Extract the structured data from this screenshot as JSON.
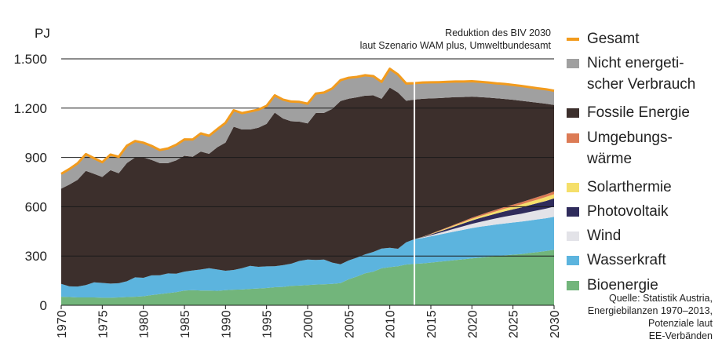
{
  "chart_data": {
    "type": "area",
    "stacked": true,
    "ylabel": "PJ",
    "ylim": [
      0,
      1500
    ],
    "yticks": [
      0,
      300,
      600,
      900,
      1200,
      1500
    ],
    "ytick_labels": [
      "0",
      "300",
      "600",
      "900",
      "1.200",
      "1.500"
    ],
    "xlim": [
      1970,
      2030
    ],
    "xticks": [
      1970,
      1975,
      1980,
      1985,
      1990,
      1995,
      2000,
      2005,
      2010,
      2015,
      2020,
      2025,
      2030
    ],
    "xtick_labels": [
      "1970",
      "1975",
      "1980",
      "1985",
      "1990",
      "1995",
      "2000",
      "2005",
      "2010",
      "2015",
      "2020",
      "2025",
      "2030"
    ],
    "grid": "horizontal",
    "divider_year": 2013,
    "note": "Reduktion des BIV 2030\nlaut Szenario WAM plus, Umweltbundesamt",
    "source": "Quelle: Statistik Austria,\nEnergiebilanzen 1970–2013,\nPotenziale laut\nEE-Verbänden",
    "x": [
      1970,
      1971,
      1972,
      1973,
      1974,
      1975,
      1976,
      1977,
      1978,
      1979,
      1980,
      1981,
      1982,
      1983,
      1984,
      1985,
      1986,
      1987,
      1988,
      1989,
      1990,
      1991,
      1992,
      1993,
      1994,
      1995,
      1996,
      1997,
      1998,
      1999,
      2000,
      2001,
      2002,
      2003,
      2004,
      2005,
      2006,
      2007,
      2008,
      2009,
      2010,
      2011,
      2012,
      2013,
      2014,
      2015,
      2016,
      2017,
      2018,
      2019,
      2020,
      2021,
      2022,
      2023,
      2024,
      2025,
      2026,
      2027,
      2028,
      2029,
      2030
    ],
    "series": [
      {
        "name": "Bioenergie",
        "color": "#72b57b",
        "values": [
          52,
          50,
          48,
          48,
          48,
          46,
          46,
          48,
          50,
          52,
          55,
          62,
          68,
          74,
          80,
          90,
          92,
          90,
          90,
          88,
          92,
          95,
          96,
          100,
          102,
          105,
          110,
          112,
          118,
          120,
          123,
          126,
          128,
          130,
          135,
          158,
          175,
          195,
          205,
          225,
          232,
          238,
          248,
          252,
          255,
          260,
          265,
          270,
          275,
          280,
          285,
          290,
          295,
          300,
          304,
          308,
          312,
          318,
          324,
          330,
          338
        ]
      },
      {
        "name": "Wasserkraft",
        "color": "#5cb4de",
        "values": [
          78,
          65,
          66,
          75,
          92,
          90,
          86,
          86,
          96,
          118,
          112,
          120,
          115,
          120,
          112,
          115,
          120,
          128,
          136,
          130,
          118,
          120,
          130,
          140,
          132,
          132,
          128,
          132,
          135,
          150,
          155,
          150,
          150,
          130,
          115,
          115,
          115,
          115,
          120,
          120,
          118,
          106,
          135,
          150,
          155,
          160,
          165,
          170,
          175,
          180,
          185,
          188,
          190,
          192,
          194,
          196,
          197,
          198,
          199,
          200,
          201
        ]
      },
      {
        "name": "Wind",
        "color": "#e3e3e8",
        "values": [
          0,
          0,
          0,
          0,
          0,
          0,
          0,
          0,
          0,
          0,
          0,
          0,
          0,
          0,
          0,
          0,
          0,
          0,
          0,
          0,
          0,
          0,
          0,
          0,
          0,
          0,
          0,
          0,
          0,
          0,
          0,
          0,
          0,
          0,
          0,
          0,
          0,
          0,
          0,
          0,
          0,
          0,
          0,
          0,
          3,
          6,
          10,
          14,
          18,
          22,
          26,
          30,
          34,
          38,
          42,
          45,
          48,
          52,
          55,
          58,
          62
        ]
      },
      {
        "name": "Photovoltaik",
        "color": "#2f2c5c",
        "values": [
          0,
          0,
          0,
          0,
          0,
          0,
          0,
          0,
          0,
          0,
          0,
          0,
          0,
          0,
          0,
          0,
          0,
          0,
          0,
          0,
          0,
          0,
          0,
          0,
          0,
          0,
          0,
          0,
          0,
          0,
          0,
          0,
          0,
          0,
          0,
          0,
          0,
          0,
          0,
          0,
          0,
          0,
          0,
          0,
          2,
          5,
          8,
          11,
          14,
          17,
          20,
          23,
          26,
          29,
          32,
          35,
          38,
          41,
          44,
          47,
          50
        ]
      },
      {
        "name": "Solarthermie",
        "color": "#f5df6a",
        "values": [
          0,
          0,
          0,
          0,
          0,
          0,
          0,
          0,
          0,
          0,
          0,
          0,
          0,
          0,
          0,
          0,
          0,
          0,
          0,
          0,
          0,
          0,
          0,
          0,
          0,
          0,
          0,
          0,
          0,
          0,
          0,
          0,
          0,
          0,
          0,
          0,
          0,
          0,
          0,
          0,
          0,
          0,
          0,
          0,
          1,
          2,
          4,
          5,
          7,
          8,
          10,
          11,
          13,
          14,
          16,
          17,
          19,
          20,
          22,
          24,
          25
        ]
      },
      {
        "name": "Umgebungswärme",
        "color": "#dc7b55",
        "values": [
          0,
          0,
          0,
          0,
          0,
          0,
          0,
          0,
          0,
          0,
          0,
          0,
          0,
          0,
          0,
          0,
          0,
          0,
          0,
          0,
          0,
          0,
          0,
          0,
          0,
          0,
          0,
          0,
          0,
          0,
          0,
          0,
          0,
          0,
          0,
          0,
          0,
          0,
          0,
          0,
          0,
          0,
          0,
          0,
          1,
          2,
          3,
          4,
          5,
          6,
          7,
          8,
          9,
          10,
          11,
          12,
          13,
          14,
          15,
          16,
          17
        ]
      },
      {
        "name": "Fossile Energie",
        "color": "#3c2f2c",
        "values": [
          580,
          620,
          650,
          695,
          660,
          645,
          690,
          670,
          720,
          730,
          733,
          703,
          682,
          671,
          690,
          705,
          692,
          718,
          696,
          744,
          780,
          872,
          844,
          830,
          847,
          867,
          935,
          893,
          867,
          848,
          829,
          895,
          893,
          935,
          993,
          985,
          976,
          966,
          953,
          912,
          975,
          951,
          862,
          850,
          840,
          824,
          806,
          790,
          773,
          755,
          737,
          717,
          697,
          677,
          657,
          638,
          618,
          596,
          574,
          552,
          526
        ]
      },
      {
        "name": "Nicht energetischer Verbrauch",
        "color": "#a0a0a0",
        "values": [
          90,
          95,
          100,
          102,
          95,
          90,
          95,
          100,
          105,
          100,
          90,
          85,
          80,
          90,
          95,
          100,
          105,
          110,
          110,
          110,
          120,
          100,
          100,
          110,
          110,
          110,
          105,
          115,
          120,
          120,
          120,
          118,
          124,
          125,
          127,
          127,
          124,
          124,
          117,
          103,
          115,
          110,
          105,
          100,
          99,
          98,
          97,
          96,
          95,
          94,
          94,
          93,
          92,
          91,
          91,
          90,
          90,
          89,
          88,
          88,
          87
        ]
      }
    ],
    "total": {
      "name": "Gesamt",
      "color": "#f29b1d"
    }
  },
  "legend": {
    "items": [
      {
        "label": "Gesamt",
        "color": "#f29b1d",
        "kind": "line"
      },
      {
        "label": "Nicht energeti-\nscher Verbrauch",
        "color": "#a0a0a0",
        "kind": "box"
      },
      {
        "label": "Fossile Energie",
        "color": "#3c2f2c",
        "kind": "box"
      },
      {
        "label": "Umgebungs-\nwärme",
        "color": "#dc7b55",
        "kind": "box"
      },
      {
        "label": "Solarthermie",
        "color": "#f5df6a",
        "kind": "box"
      },
      {
        "label": "Photovoltaik",
        "color": "#2f2c5c",
        "kind": "box"
      },
      {
        "label": "Wind",
        "color": "#e3e3e8",
        "kind": "box"
      },
      {
        "label": "Wasserkraft",
        "color": "#5cb4de",
        "kind": "box"
      },
      {
        "label": "Bioenergie",
        "color": "#72b57b",
        "kind": "box"
      }
    ]
  }
}
